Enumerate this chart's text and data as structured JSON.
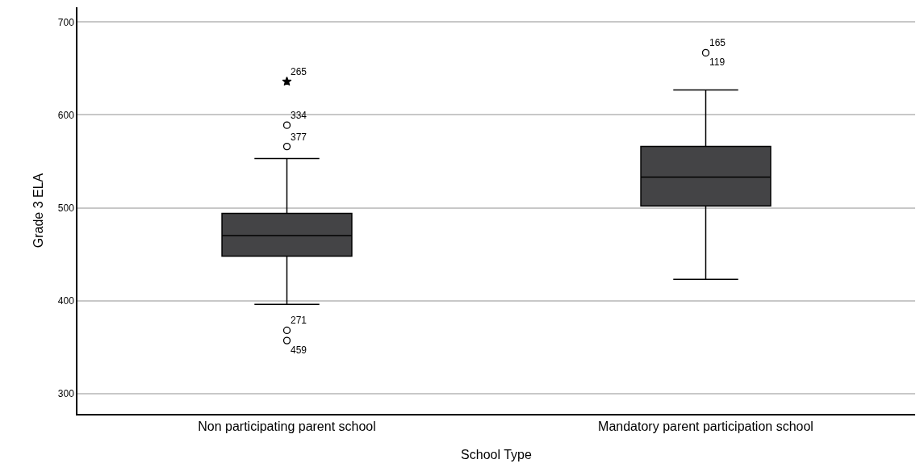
{
  "chart_data": {
    "type": "box",
    "xlabel": "School Type",
    "ylabel": "Grade 3 ELA",
    "categories": [
      "Non participating parent school",
      "Mandatory parent participation school"
    ],
    "color": "#444446",
    "boxes": [
      {
        "low": 396,
        "q1": 448,
        "median": 470,
        "q3": 494,
        "high": 553
      },
      {
        "low": 423,
        "q1": 502,
        "median": 533,
        "q3": 566,
        "high": 627
      }
    ],
    "series": [
      {
        "type": "scatter",
        "marker": "circle",
        "color": "#000000",
        "x": [
          "Non participating parent school",
          "Non participating parent school",
          "Non participating parent school",
          "Non participating parent school",
          "Mandatory parent participation school"
        ],
        "values": [
          589,
          566,
          368,
          357,
          667
        ]
      },
      {
        "type": "scatter",
        "marker": "star",
        "color": "#000000",
        "x": [
          "Non participating parent school"
        ],
        "values": [
          636
        ]
      }
    ],
    "ylim": [
      278,
      716
    ],
    "yticks": [
      300,
      400,
      500,
      600,
      700
    ],
    "grid": "y",
    "annotations": [
      {
        "text": "265",
        "x": "Non participating parent school",
        "y": 636
      },
      {
        "text": "334",
        "x": "Non participating parent school",
        "y": 589
      },
      {
        "text": "377",
        "x": "Non participating parent school",
        "y": 566
      },
      {
        "text": "271",
        "x": "Non participating parent school",
        "y": 368
      },
      {
        "text": "459",
        "x": "Non participating parent school",
        "y": 357
      },
      {
        "text": "165",
        "x": "Mandatory parent participation school",
        "y": 667
      },
      {
        "text": "119",
        "x": "Mandatory parent participation school",
        "y": 667
      }
    ]
  }
}
